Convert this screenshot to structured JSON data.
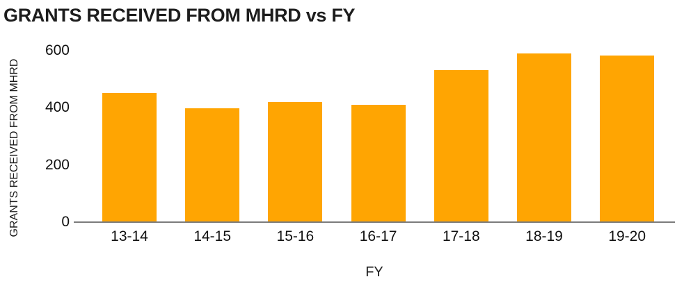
{
  "chart_data": {
    "type": "bar",
    "title": "GRANTS RECEIVED FROM MHRD vs FY",
    "xlabel": "FY",
    "ylabel": "GRANTS RECEIVED FROM MHRD",
    "categories": [
      "13-14",
      "14-15",
      "15-16",
      "16-17",
      "17-18",
      "18-19",
      "19-20"
    ],
    "values": [
      450,
      398,
      420,
      410,
      530,
      588,
      583
    ],
    "yticks": [
      0,
      200,
      400,
      600
    ],
    "ylim": [
      0,
      600
    ],
    "grid": false,
    "legend": false,
    "bar_color": "#FFA502",
    "axis_line_color": "#7B7B7B",
    "text_color": "#1D1D1D",
    "background_color": "#FFFFFF"
  }
}
